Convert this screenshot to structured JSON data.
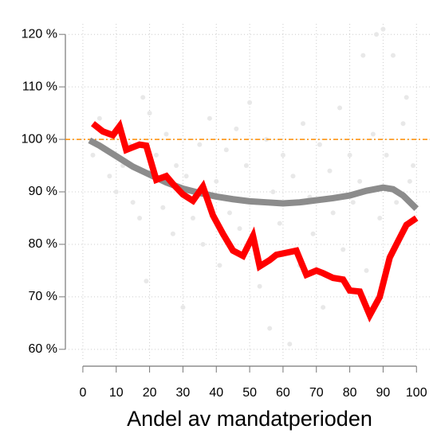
{
  "chart_data": {
    "type": "line",
    "xlabel": "Andel av mandatperioden",
    "xlim": [
      -5,
      104
    ],
    "ylim": [
      58,
      122
    ],
    "xticks": [
      0,
      10,
      20,
      30,
      40,
      50,
      60,
      70,
      80,
      90,
      100
    ],
    "yticks": [
      {
        "value": 60,
        "label": "60 %"
      },
      {
        "value": 70,
        "label": "70 %"
      },
      {
        "value": 80,
        "label": "80 %"
      },
      {
        "value": 90,
        "label": "90 %"
      },
      {
        "value": 100,
        "label": "100 %"
      },
      {
        "value": 110,
        "label": "110 %"
      },
      {
        "value": 120,
        "label": "120 %"
      }
    ],
    "grid": true,
    "hline": {
      "value": 100,
      "color": "#ff8c00"
    },
    "series": [
      {
        "type": "scatter",
        "color": "#e8e8e8",
        "x": [
          3,
          5,
          8,
          10,
          12,
          14,
          15,
          17,
          18,
          19,
          20,
          22,
          24,
          25,
          27,
          28,
          30,
          31,
          33,
          35,
          36,
          38,
          40,
          41,
          43,
          44,
          46,
          47,
          49,
          50,
          52,
          53,
          55,
          56,
          57,
          59,
          60,
          62,
          63,
          65,
          66,
          68,
          69,
          71,
          72,
          74,
          75,
          77,
          78,
          80,
          81,
          83,
          84,
          85,
          87,
          88,
          89,
          90,
          91,
          93,
          94,
          96,
          97,
          98,
          99
        ],
        "values": [
          97,
          104,
          93,
          90,
          95,
          99,
          88,
          85,
          108,
          73,
          105,
          97,
          87,
          101,
          82,
          95,
          68,
          93,
          85,
          99,
          80,
          104,
          92,
          76,
          98,
          86,
          102,
          83,
          95,
          107,
          88,
          72,
          100,
          64,
          90,
          84,
          97,
          61,
          93,
          76,
          103,
          89,
          82,
          99,
          68,
          94,
          86,
          106,
          79,
          97,
          88,
          92,
          116,
          75,
          101,
          120,
          85,
          121,
          97,
          116,
          88,
          103,
          108,
          92,
          95
        ]
      },
      {
        "type": "line",
        "color": "#8c8c8c",
        "width": 8,
        "x": [
          2,
          5,
          10,
          15,
          20,
          25,
          30,
          35,
          40,
          45,
          50,
          55,
          60,
          65,
          70,
          75,
          80,
          85,
          90,
          93,
          96,
          100
        ],
        "values": [
          99.8,
          98.8,
          96.8,
          94.8,
          93.3,
          91.8,
          90.6,
          89.8,
          89.1,
          88.6,
          88.2,
          88,
          87.8,
          88,
          88.4,
          88.8,
          89.3,
          90.2,
          90.8,
          90.5,
          89.3,
          86.8
        ]
      },
      {
        "type": "line",
        "color": "#ff0000",
        "width": 8,
        "x": [
          3,
          6,
          9,
          11,
          13,
          15,
          17,
          19,
          22,
          25,
          27,
          30,
          33,
          36,
          39,
          42,
          45,
          48,
          51,
          53,
          56,
          58,
          61,
          64,
          67,
          70,
          72,
          75,
          78,
          80,
          83,
          86,
          89,
          92,
          94,
          97,
          100
        ],
        "values": [
          103,
          101.5,
          100.8,
          102.5,
          98,
          98.5,
          99,
          98.8,
          92.3,
          93,
          91.5,
          89.5,
          88.3,
          91,
          85.5,
          82,
          78.8,
          77.8,
          81.6,
          75.8,
          77,
          78,
          78.4,
          78.8,
          74.2,
          75,
          74.5,
          73.6,
          73.3,
          71.2,
          71,
          66.5,
          70,
          77.5,
          80,
          83.7,
          85
        ]
      }
    ]
  }
}
